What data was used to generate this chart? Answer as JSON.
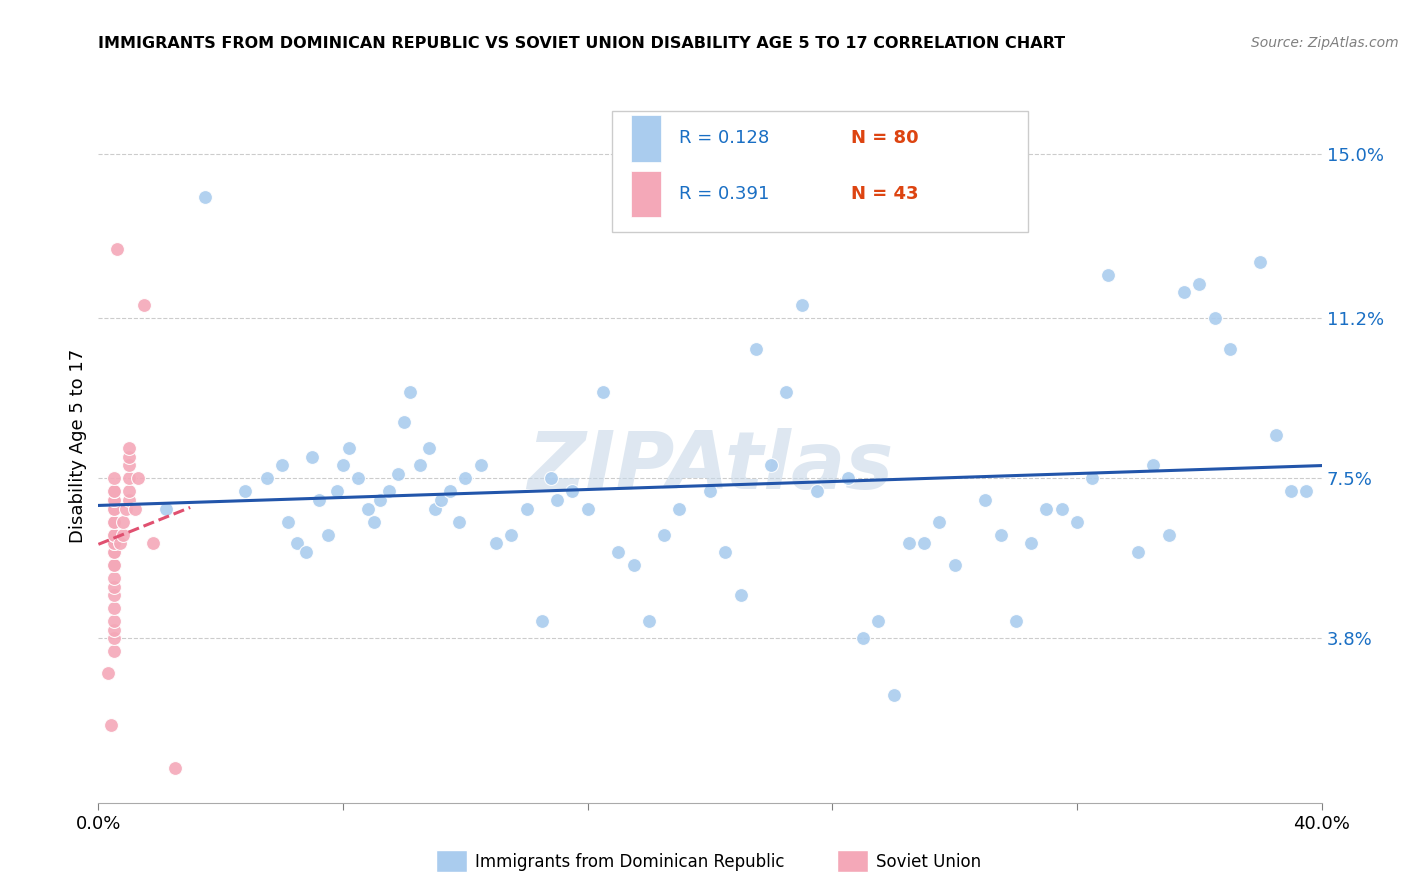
{
  "title": "IMMIGRANTS FROM DOMINICAN REPUBLIC VS SOVIET UNION DISABILITY AGE 5 TO 17 CORRELATION CHART",
  "source": "Source: ZipAtlas.com",
  "ylabel": "Disability Age 5 to 17",
  "xlim": [
    0.0,
    0.4
  ],
  "ylim": [
    0.0,
    0.165
  ],
  "ytick_positions": [
    0.038,
    0.075,
    0.112,
    0.15
  ],
  "ytick_labels": [
    "3.8%",
    "7.5%",
    "11.2%",
    "15.0%"
  ],
  "blue_color": "#aaccee",
  "pink_color": "#f4a8b8",
  "blue_line_color": "#2255aa",
  "pink_line_color": "#e05070",
  "blue_x": [
    0.022,
    0.035,
    0.048,
    0.055,
    0.06,
    0.062,
    0.065,
    0.068,
    0.07,
    0.072,
    0.075,
    0.078,
    0.08,
    0.082,
    0.085,
    0.088,
    0.09,
    0.092,
    0.095,
    0.098,
    0.1,
    0.102,
    0.105,
    0.108,
    0.11,
    0.112,
    0.115,
    0.118,
    0.12,
    0.125,
    0.13,
    0.135,
    0.14,
    0.145,
    0.148,
    0.15,
    0.155,
    0.16,
    0.165,
    0.17,
    0.175,
    0.18,
    0.185,
    0.19,
    0.2,
    0.205,
    0.21,
    0.215,
    0.22,
    0.225,
    0.23,
    0.235,
    0.245,
    0.25,
    0.255,
    0.26,
    0.265,
    0.27,
    0.275,
    0.28,
    0.29,
    0.295,
    0.3,
    0.305,
    0.31,
    0.315,
    0.32,
    0.325,
    0.33,
    0.34,
    0.345,
    0.35,
    0.355,
    0.36,
    0.365,
    0.37,
    0.38,
    0.385,
    0.39,
    0.395
  ],
  "blue_y": [
    0.068,
    0.14,
    0.072,
    0.075,
    0.078,
    0.065,
    0.06,
    0.058,
    0.08,
    0.07,
    0.062,
    0.072,
    0.078,
    0.082,
    0.075,
    0.068,
    0.065,
    0.07,
    0.072,
    0.076,
    0.088,
    0.095,
    0.078,
    0.082,
    0.068,
    0.07,
    0.072,
    0.065,
    0.075,
    0.078,
    0.06,
    0.062,
    0.068,
    0.042,
    0.075,
    0.07,
    0.072,
    0.068,
    0.095,
    0.058,
    0.055,
    0.042,
    0.062,
    0.068,
    0.072,
    0.058,
    0.048,
    0.105,
    0.078,
    0.095,
    0.115,
    0.072,
    0.075,
    0.038,
    0.042,
    0.025,
    0.06,
    0.06,
    0.065,
    0.055,
    0.07,
    0.062,
    0.042,
    0.06,
    0.068,
    0.068,
    0.065,
    0.075,
    0.122,
    0.058,
    0.078,
    0.062,
    0.118,
    0.12,
    0.112,
    0.105,
    0.125,
    0.085,
    0.072,
    0.072
  ],
  "pink_x": [
    0.003,
    0.004,
    0.005,
    0.005,
    0.005,
    0.005,
    0.005,
    0.005,
    0.005,
    0.005,
    0.005,
    0.005,
    0.005,
    0.005,
    0.005,
    0.005,
    0.005,
    0.005,
    0.005,
    0.005,
    0.005,
    0.005,
    0.005,
    0.005,
    0.005,
    0.005,
    0.005,
    0.006,
    0.007,
    0.008,
    0.008,
    0.009,
    0.01,
    0.01,
    0.01,
    0.01,
    0.01,
    0.01,
    0.012,
    0.013,
    0.015,
    0.018,
    0.025
  ],
  "pink_y": [
    0.03,
    0.018,
    0.035,
    0.038,
    0.04,
    0.042,
    0.045,
    0.048,
    0.05,
    0.052,
    0.055,
    0.055,
    0.058,
    0.058,
    0.06,
    0.06,
    0.062,
    0.062,
    0.065,
    0.065,
    0.068,
    0.068,
    0.07,
    0.07,
    0.072,
    0.072,
    0.075,
    0.128,
    0.06,
    0.062,
    0.065,
    0.068,
    0.07,
    0.072,
    0.075,
    0.078,
    0.08,
    0.082,
    0.068,
    0.075,
    0.115,
    0.06,
    0.008
  ]
}
